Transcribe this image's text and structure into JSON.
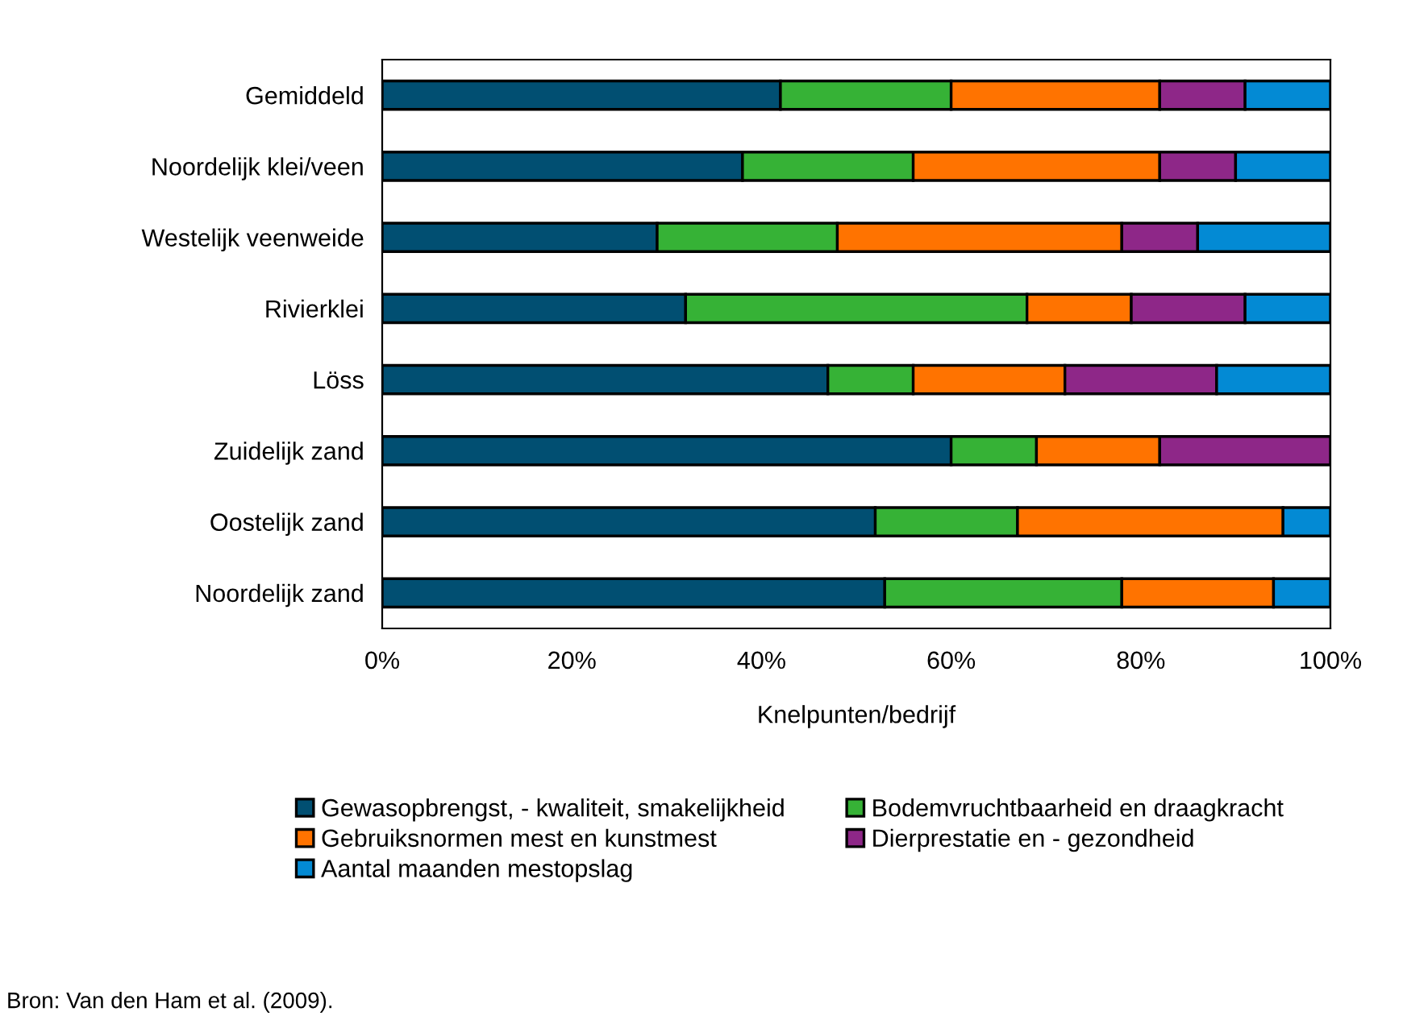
{
  "chart_data": {
    "type": "bar",
    "orientation": "horizontal",
    "stacked": true,
    "categories": [
      "Gemiddeld",
      "Noordelijk klei/veen",
      "Westelijk veenweide",
      "Rivierklei",
      "Löss",
      "Zuidelijk zand",
      "Oostelijk zand",
      "Noordelijk zand"
    ],
    "series": [
      {
        "name": "Gewasopbrengst, - kwaliteit, smakelijkheid",
        "color": "#014f72",
        "values": [
          42,
          38,
          29,
          32,
          47,
          60,
          52,
          53
        ]
      },
      {
        "name": "Bodemvruchtbaarheid en draagkracht",
        "color": "#36b236",
        "values": [
          18,
          18,
          19,
          36,
          9,
          9,
          15,
          25
        ]
      },
      {
        "name": "Gebruiksnormen mest en kunstmest",
        "color": "#ff7300",
        "values": [
          22,
          26,
          30,
          11,
          16,
          13,
          28,
          16
        ]
      },
      {
        "name": "Dierprestatie en - gezondheid",
        "color": "#8e2788",
        "values": [
          9,
          8,
          8,
          12,
          16,
          18,
          null,
          null
        ]
      },
      {
        "name": "Aantal maanden mestopslag",
        "color": "#038ad4",
        "values": [
          9,
          10,
          14,
          9,
          12,
          null,
          5,
          6
        ]
      }
    ],
    "xlim": [
      0,
      100
    ],
    "xticks": [
      {
        "value": 0,
        "label": "0%"
      },
      {
        "value": 20,
        "label": "20%"
      },
      {
        "value": 40,
        "label": "40%"
      },
      {
        "value": 60,
        "label": "60%"
      },
      {
        "value": 80,
        "label": "80%"
      },
      {
        "value": 100,
        "label": "100%"
      }
    ],
    "xlabel": "Knelpunten/bedrijf",
    "legend": "bottom",
    "grid": false,
    "annotations": [
      "Bron: Van den Ham et al. (2009)."
    ]
  }
}
